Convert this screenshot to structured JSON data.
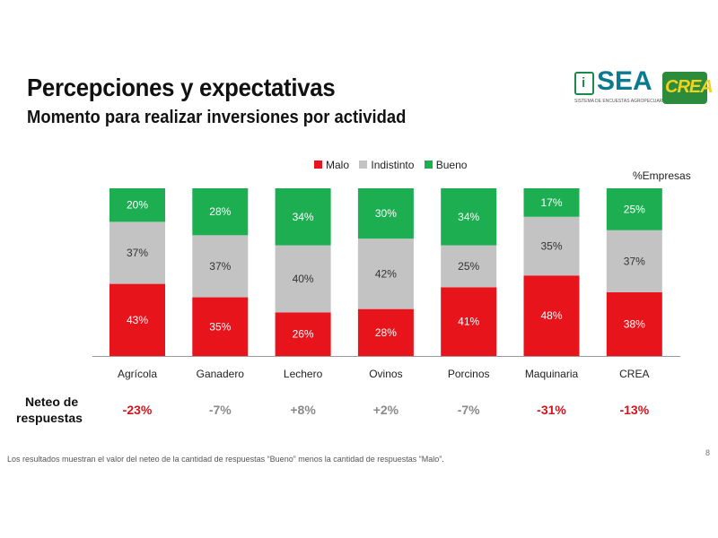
{
  "header": {
    "title": "Percepciones y expectativas",
    "subtitle": "Momento para realizar inversiones por actividad"
  },
  "logos": {
    "sea": {
      "text": "SEA",
      "sub": "SISTEMA DE ENCUESTAS AGROPECUARIAS",
      "mark": "i"
    },
    "crea": {
      "text": "CREA"
    }
  },
  "chart_data": {
    "type": "bar",
    "stacked": true,
    "categories": [
      "Agrícola",
      "Ganadero",
      "Lechero",
      "Ovinos",
      "Porcinos",
      "Maquinaria",
      "CREA"
    ],
    "series": [
      {
        "name": "Malo",
        "color": "#e8141c",
        "values": [
          43,
          35,
          26,
          28,
          41,
          48,
          38
        ]
      },
      {
        "name": "Indistinto",
        "color": "#c3c3c3",
        "values": [
          37,
          37,
          40,
          42,
          25,
          35,
          37
        ]
      },
      {
        "name": "Bueno",
        "color": "#1eae52",
        "values": [
          20,
          28,
          34,
          30,
          34,
          17,
          25
        ]
      }
    ],
    "ylim": [
      0,
      100
    ],
    "unit_label": "%Empresas",
    "legend_position": "top-center",
    "grid": false
  },
  "neteo": {
    "label_line1": "Neteo de",
    "label_line2": "respuestas",
    "values": [
      "-23%",
      "-7%",
      "+8%",
      "+2%",
      "-7%",
      "-31%",
      "-13%"
    ],
    "colors": [
      "#d0141c",
      "#8a8a8a",
      "#8a8a8a",
      "#8a8a8a",
      "#8a8a8a",
      "#d0141c",
      "#d0141c"
    ]
  },
  "footnote": "Los resultados muestran el valor del neteo de la cantidad de respuestas “Bueno” menos la cantidad de respuestas “Malo”.",
  "page_number": "8"
}
